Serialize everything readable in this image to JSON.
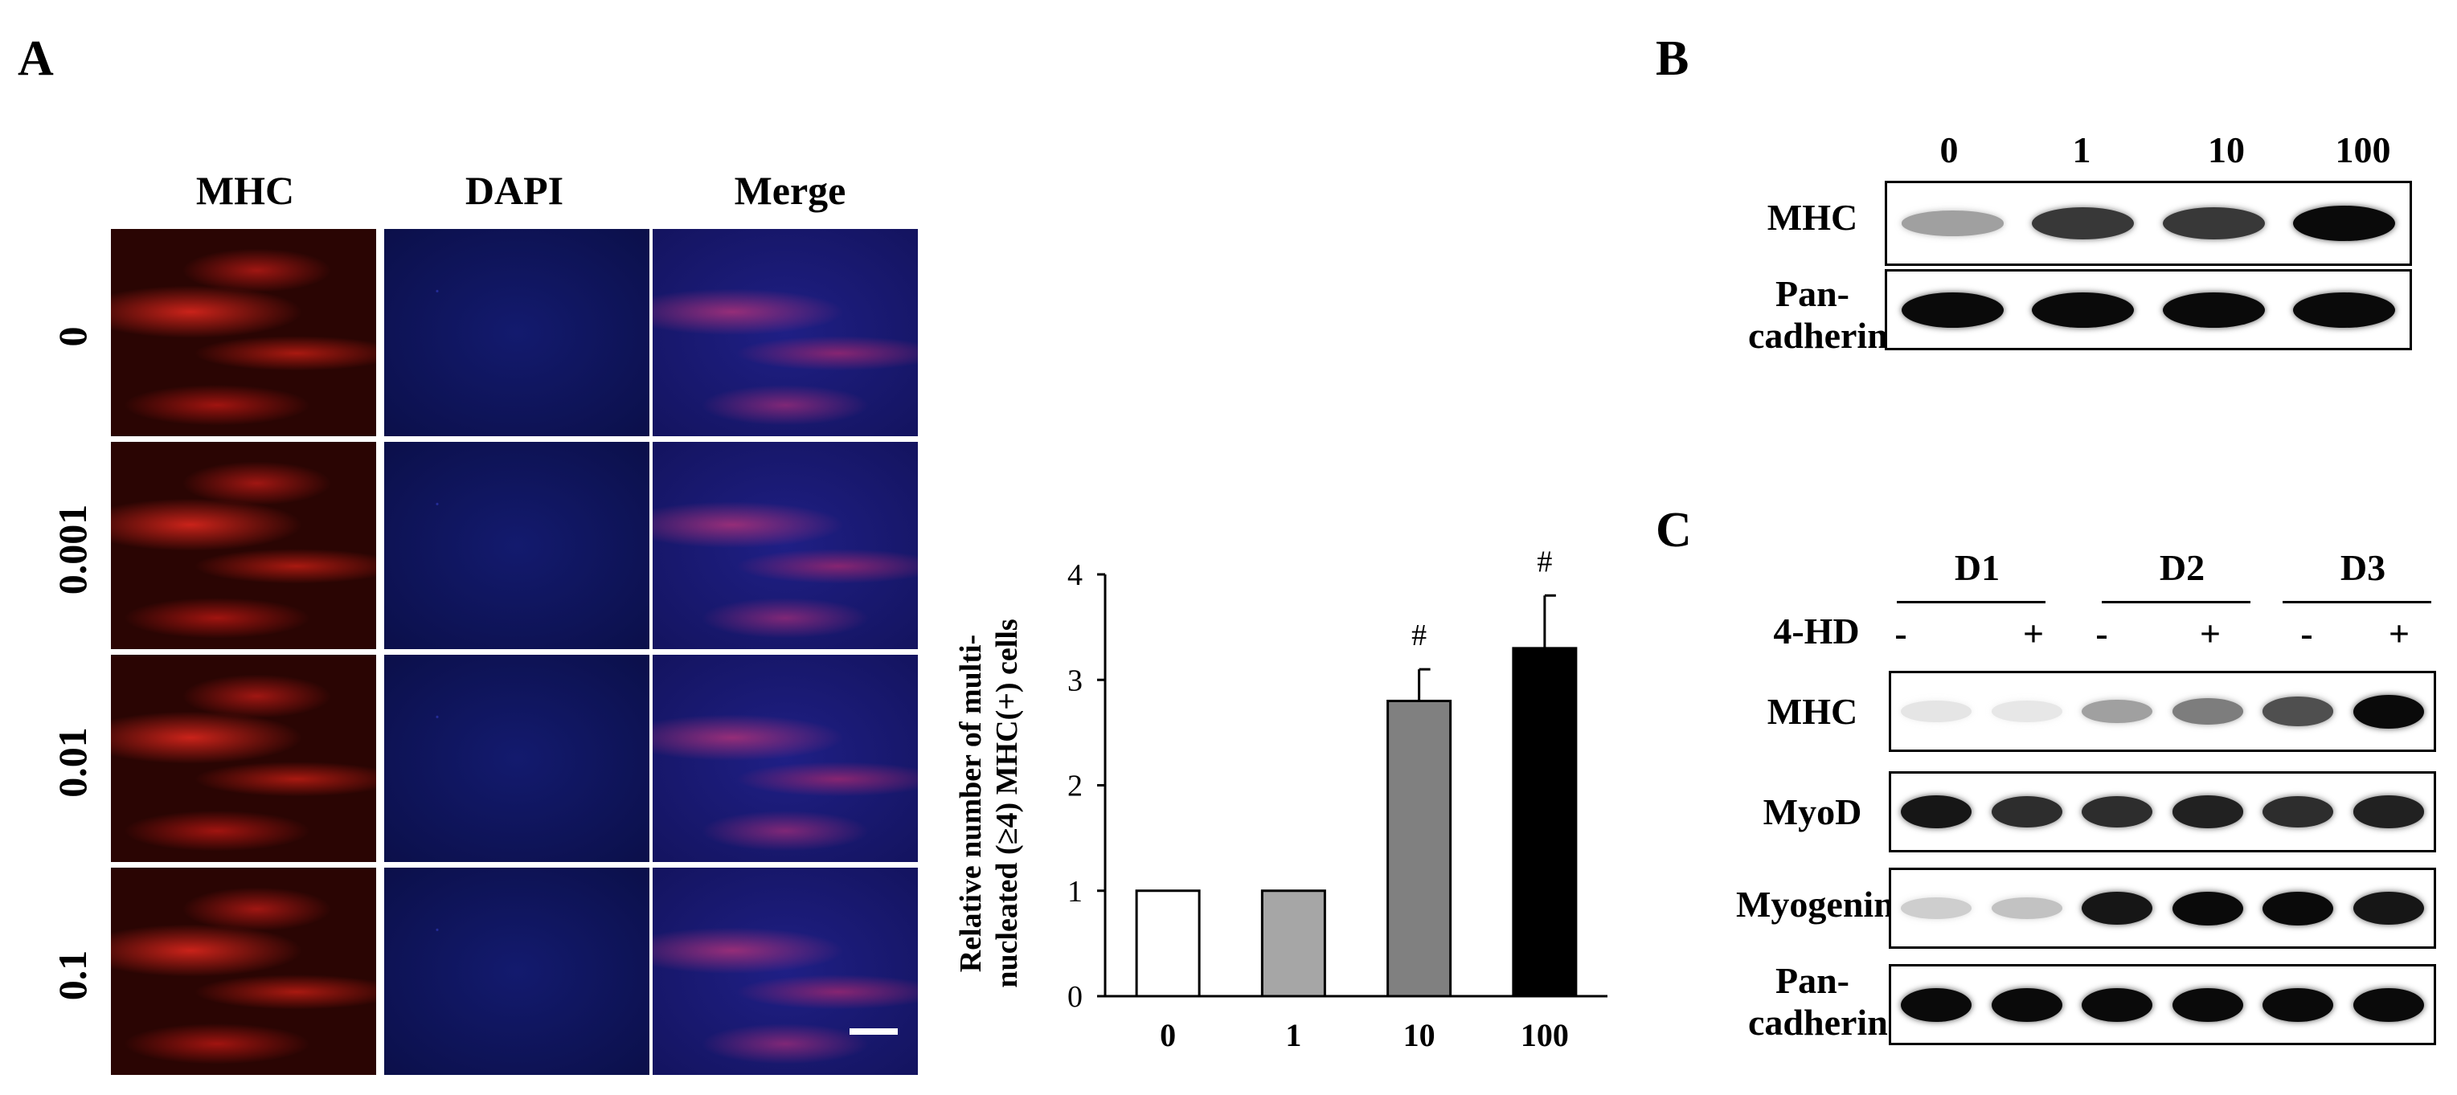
{
  "panel_a": {
    "letter": "A",
    "columns": [
      "MHC",
      "DAPI",
      "Merge"
    ],
    "rows": [
      "0",
      "0.001",
      "0.01",
      "0.1"
    ]
  },
  "chart_data": {
    "type": "bar",
    "categories": [
      "0",
      "1",
      "10",
      "100"
    ],
    "values": [
      1.0,
      1.0,
      2.8,
      3.3
    ],
    "errors": [
      0.0,
      0.0,
      0.3,
      0.5
    ],
    "significance": [
      "",
      "",
      "#",
      "#"
    ],
    "bar_colors": [
      "#ffffff",
      "#a6a6a6",
      "#808080",
      "#000000"
    ],
    "ylabel": "Relative number of multi-nucleated (≥4) MHC(+) cells",
    "ylabel_line1": "Relative number of multi-",
    "ylabel_line2": "nucleated (≥4) MHC(+) cells",
    "ylim": [
      0,
      4
    ],
    "yticks": [
      "0",
      "1",
      "2",
      "3",
      "4"
    ],
    "grid": false
  },
  "panel_b": {
    "letter": "B",
    "lanes": [
      "0",
      "1",
      "10",
      "100"
    ],
    "blots": [
      {
        "label": "MHC",
        "intensities": [
          0.35,
          0.8,
          0.8,
          1.0
        ]
      },
      {
        "label": "Pan-\ncadherin",
        "line1": "Pan-",
        "line2": "cadherin",
        "intensities": [
          1.0,
          1.0,
          1.0,
          1.0
        ]
      }
    ]
  },
  "panel_c": {
    "letter": "C",
    "groups": [
      "D1",
      "D2",
      "D3"
    ],
    "treatment_label": "4-HD",
    "signs": [
      "-",
      "+",
      "-",
      "+",
      "-",
      "+"
    ],
    "blots": [
      {
        "label": "MHC",
        "intensities": [
          0.05,
          0.04,
          0.35,
          0.5,
          0.7,
          1.0
        ]
      },
      {
        "label": "MyoD",
        "intensities": [
          0.95,
          0.85,
          0.85,
          0.9,
          0.85,
          0.9
        ]
      },
      {
        "label": "Myogenin",
        "intensities": [
          0.15,
          0.2,
          0.95,
          1.0,
          1.0,
          0.95
        ]
      },
      {
        "label": "Pan-\ncadherin",
        "line1": "Pan-",
        "line2": "cadherin",
        "intensities": [
          1.0,
          1.0,
          1.0,
          1.0,
          1.0,
          1.0
        ]
      }
    ]
  }
}
